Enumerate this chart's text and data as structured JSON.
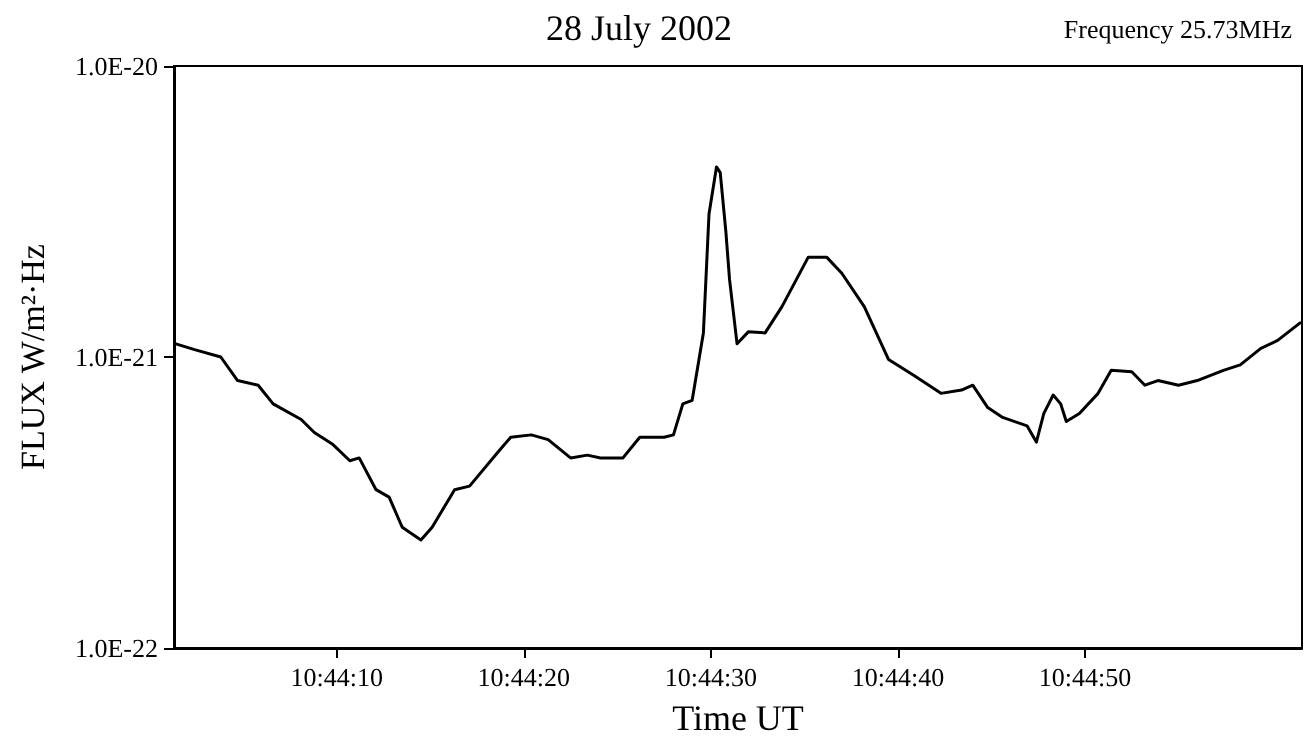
{
  "chart_data": {
    "type": "line",
    "title": "28 July 2002",
    "xlabel": "Time UT",
    "ylabel": "FLUX W/m²·Hz",
    "annotations": [
      "Frequency 25.73MHz"
    ],
    "log": "y",
    "grid": false,
    "marker": "none",
    "line_style": "solid",
    "xlim": [
      38641.3,
      38701.6
    ],
    "ylim": [
      1e-22,
      1e-20
    ],
    "xticks": [
      {
        "value": 38650,
        "label": "10:44:10"
      },
      {
        "value": 38660,
        "label": "10:44:20"
      },
      {
        "value": 38670,
        "label": "10:44:30"
      },
      {
        "value": 38680,
        "label": "10:44:40"
      },
      {
        "value": 38690,
        "label": "10:44:50"
      }
    ],
    "yticks": [
      {
        "value": 1e-22,
        "label": "1.0E-22"
      },
      {
        "value": 1e-21,
        "label": "1.0E-21"
      },
      {
        "value": 1e-20,
        "label": "1.0E-20"
      }
    ],
    "series": [
      {
        "color": "#000000",
        "x": [
          38641.4,
          38642.4,
          38643.8,
          38644.7,
          38645.8,
          38646.6,
          38648.1,
          38648.8,
          38649.8,
          38650.7,
          38651.2,
          38652.1,
          38652.8,
          38653.5,
          38654.5,
          38655.1,
          38656.3,
          38657.1,
          38658.6,
          38659.3,
          38660.4,
          38661.3,
          38662.5,
          38663.4,
          38664.1,
          38665.3,
          38666.2,
          38667.5,
          38668.0,
          38668.5,
          38669.0,
          38669.6,
          38669.9,
          38670.3,
          38670.5,
          38670.8,
          38671.0,
          38671.4,
          38672.0,
          38672.9,
          38673.8,
          38675.2,
          38676.2,
          38677.0,
          38678.2,
          38679.5,
          38680.9,
          38682.3,
          38683.4,
          38684.0,
          38684.8,
          38685.6,
          38686.9,
          38687.4,
          38687.8,
          38688.3,
          38688.7,
          38689.0,
          38689.7,
          38690.7,
          38691.4,
          38692.5,
          38693.2,
          38693.9,
          38695.0,
          38696.0,
          38697.4,
          38698.3,
          38699.4,
          38700.3,
          38701.5
        ],
        "values": [
          1.11e-21,
          1.06e-21,
          1e-21,
          8.3e-22,
          8e-22,
          6.9e-22,
          6.1e-22,
          5.5e-22,
          5e-22,
          4.4e-22,
          4.5e-22,
          3.5e-22,
          3.3e-22,
          2.6e-22,
          2.35e-22,
          2.6e-22,
          3.5e-22,
          3.6e-22,
          4.7e-22,
          5.3e-22,
          5.4e-22,
          5.2e-22,
          4.5e-22,
          4.6e-22,
          4.5e-22,
          4.5e-22,
          5.3e-22,
          5.3e-22,
          5.4e-22,
          6.9e-22,
          7.1e-22,
          1.21e-21,
          3.1e-21,
          4.5e-21,
          4.3e-21,
          2.7e-21,
          1.84e-21,
          1.11e-21,
          1.22e-21,
          1.21e-21,
          1.49e-21,
          2.2e-21,
          2.2e-21,
          1.94e-21,
          1.49e-21,
          9.8e-22,
          8.6e-22,
          7.5e-22,
          7.7e-22,
          8e-22,
          6.7e-22,
          6.2e-22,
          5.8e-22,
          5.1e-22,
          6.4e-22,
          7.4e-22,
          6.9e-22,
          6e-22,
          6.4e-22,
          7.5e-22,
          9e-22,
          8.9e-22,
          8e-22,
          8.3e-22,
          8e-22,
          8.3e-22,
          9e-22,
          9.4e-22,
          1.07e-21,
          1.14e-21,
          1.31e-21
        ]
      }
    ]
  }
}
